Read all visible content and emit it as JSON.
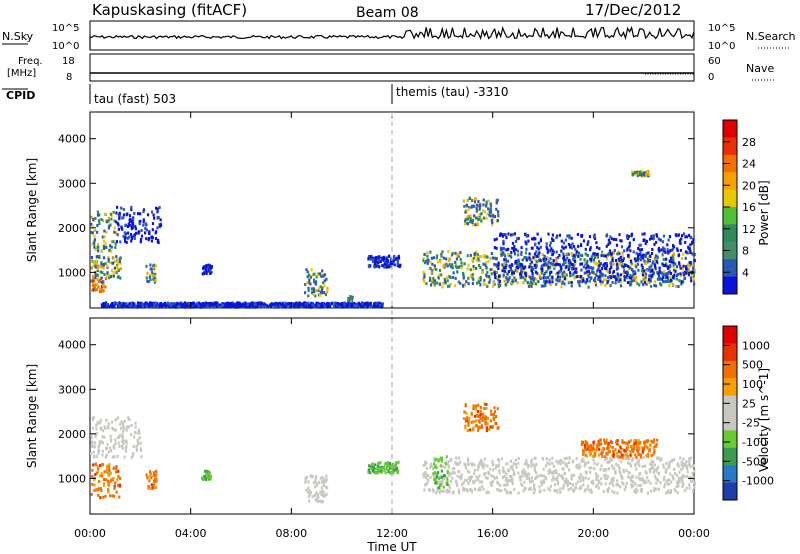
{
  "header": {
    "station": "Kapuskasing (fitACF)",
    "beam": "Beam 08",
    "date": "17/Dec/2012"
  },
  "top_panels": {
    "nsky_label": "N.Sky",
    "nsky_ticks": [
      "10^5",
      "10^0"
    ],
    "nsearch_label": "N.Search",
    "nsearch_ticks": [
      "10^5",
      "10^0"
    ],
    "freq_label_line1": "Freq.",
    "freq_label_line2": "[MHz]",
    "freq_ticks": [
      "18",
      "8"
    ],
    "nave_label": "Nave",
    "nave_ticks": [
      "60",
      "0"
    ],
    "cpid_label": "CPID",
    "cpid_segments": [
      {
        "start_hour": 0,
        "label": "tau (fast) 503"
      },
      {
        "start_hour": 12,
        "label": "themis (tau) -3310"
      }
    ]
  },
  "chart_data": [
    {
      "type": "heatmap",
      "panel": "power",
      "xlabel": "",
      "ylabel": "Slant Range [km]",
      "xlim_hours": [
        0,
        24
      ],
      "ylim_km": [
        200,
        4600
      ],
      "y_ticks": [
        "1000",
        "2000",
        "3000",
        "4000"
      ],
      "colorbar_label": "Power [dB]",
      "colorbar_ticks": [
        "28",
        "24",
        "20",
        "16",
        "12",
        "8",
        "4"
      ],
      "colorbar_colors": [
        "#0a14d8",
        "#2a58b8",
        "#3e8f6a",
        "#2e8b57",
        "#4fbf3a",
        "#e6c800",
        "#f7a000",
        "#f07000",
        "#e83000",
        "#e00000"
      ],
      "regions": [
        {
          "t": [
            0.0,
            0.6
          ],
          "r": [
            600,
            900
          ],
          "level": "high"
        },
        {
          "t": [
            0.0,
            1.2
          ],
          "r": [
            900,
            1400
          ],
          "level": "mid"
        },
        {
          "t": [
            0.0,
            1.0
          ],
          "r": [
            1500,
            2400
          ],
          "level": "mid"
        },
        {
          "t": [
            1.0,
            2.8
          ],
          "r": [
            1700,
            2500
          ],
          "level": "low"
        },
        {
          "t": [
            2.2,
            2.6
          ],
          "r": [
            800,
            1200
          ],
          "level": "mid"
        },
        {
          "t": [
            4.4,
            4.8
          ],
          "r": [
            1000,
            1200
          ],
          "level": "low"
        },
        {
          "t": [
            8.5,
            9.4
          ],
          "r": [
            500,
            1100
          ],
          "level": "mid"
        },
        {
          "t": [
            10.2,
            10.4
          ],
          "r": [
            300,
            500
          ],
          "level": "mid"
        },
        {
          "t": [
            11.0,
            12.3
          ],
          "r": [
            1150,
            1400
          ],
          "level": "low"
        },
        {
          "t": [
            0.4,
            11.6
          ],
          "r": [
            250,
            350
          ],
          "level": "low"
        },
        {
          "t": [
            13.2,
            24.0
          ],
          "r": [
            700,
            1500
          ],
          "level": "mid"
        },
        {
          "t": [
            16.0,
            24.0
          ],
          "r": [
            800,
            1900
          ],
          "level": "low"
        },
        {
          "t": [
            14.8,
            16.2
          ],
          "r": [
            2100,
            2700
          ],
          "level": "mid"
        },
        {
          "t": [
            21.5,
            22.2
          ],
          "r": [
            3200,
            3300
          ],
          "level": "mid"
        }
      ]
    },
    {
      "type": "heatmap",
      "panel": "velocity",
      "xlabel": "Time UT",
      "ylabel": "Slant Range [km]",
      "xlim_hours": [
        0,
        24
      ],
      "ylim_km": [
        200,
        4600
      ],
      "x_ticks": [
        "00:00",
        "04:00",
        "08:00",
        "12:00",
        "16:00",
        "20:00",
        "00:00"
      ],
      "y_ticks": [
        "1000",
        "2000",
        "3000",
        "4000"
      ],
      "colorbar_label": "Velocity [m s^-1]",
      "colorbar_ticks": [
        "1000",
        "500",
        "100",
        "25",
        "-25",
        "-100",
        "-500",
        "-1000"
      ],
      "colorbar_colors": [
        "#1e3fa6",
        "#2a78c8",
        "#3a9c50",
        "#66cc33",
        "#c8c8c0",
        "#c8c8c0",
        "#f7a000",
        "#f07000",
        "#e83000",
        "#e00000"
      ],
      "regions": [
        {
          "t": [
            0.0,
            1.2
          ],
          "r": [
            600,
            1400
          ],
          "class": "toward"
        },
        {
          "t": [
            0.0,
            2.0
          ],
          "r": [
            1500,
            2400
          ],
          "class": "ground"
        },
        {
          "t": [
            2.2,
            2.6
          ],
          "r": [
            800,
            1200
          ],
          "class": "toward"
        },
        {
          "t": [
            4.4,
            4.8
          ],
          "r": [
            1000,
            1200
          ],
          "class": "away"
        },
        {
          "t": [
            8.5,
            9.4
          ],
          "r": [
            500,
            1100
          ],
          "class": "ground"
        },
        {
          "t": [
            11.0,
            12.3
          ],
          "r": [
            1150,
            1400
          ],
          "class": "away"
        },
        {
          "t": [
            13.2,
            24.0
          ],
          "r": [
            700,
            1500
          ],
          "class": "ground"
        },
        {
          "t": [
            13.6,
            14.2
          ],
          "r": [
            800,
            1600
          ],
          "class": "away"
        },
        {
          "t": [
            14.8,
            16.2
          ],
          "r": [
            2100,
            2700
          ],
          "class": "toward"
        },
        {
          "t": [
            19.5,
            22.5
          ],
          "r": [
            1500,
            1900
          ],
          "class": "toward"
        }
      ]
    }
  ]
}
